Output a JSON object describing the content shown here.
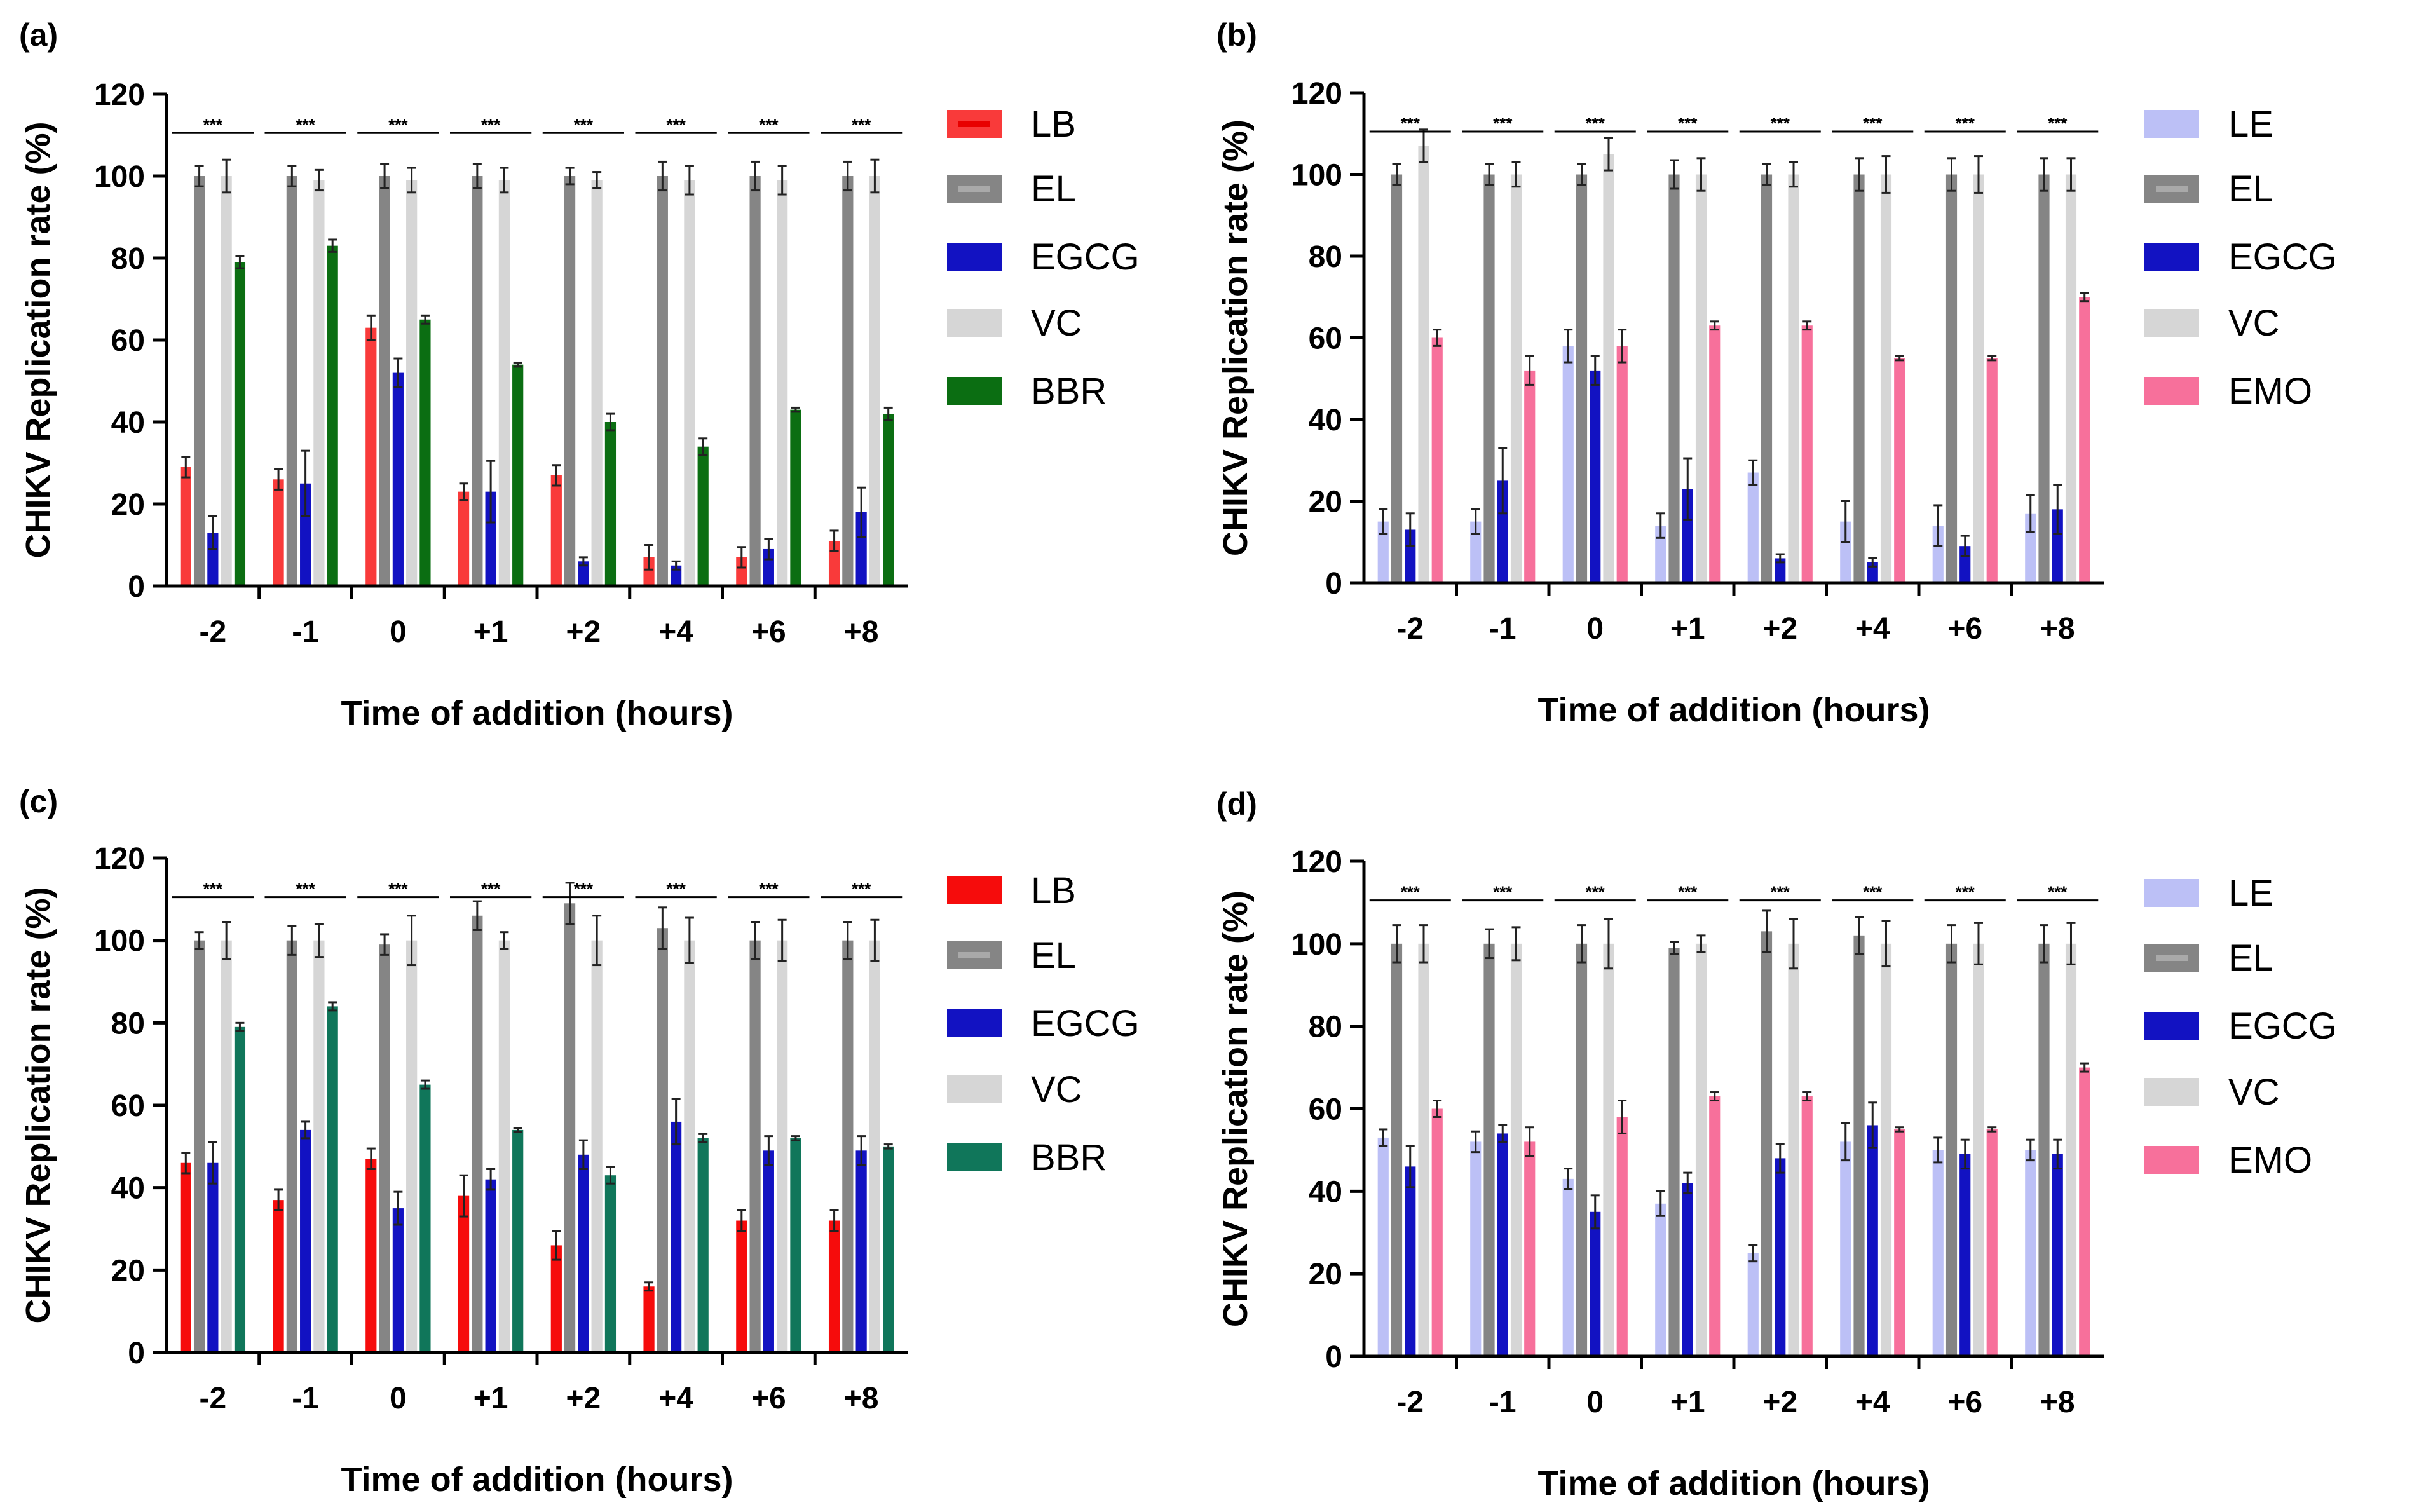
{
  "colors": {
    "LB": "#f93a3a",
    "LB_c": "#f60c0c",
    "LE": "#bcc0f6",
    "EL": "#858585",
    "EGCG": "#1212c2",
    "VC": "#d6d6d6",
    "BBR": "#0b6e12",
    "BBR_c": "#10765a",
    "EMO": "#f7709b",
    "axis": "#000000"
  },
  "chart_data": [
    {
      "panel": "(a)",
      "type": "bar",
      "title": "",
      "ylabel": "CHIKV Replication rate (%)",
      "xlabel": "Time of addition (hours)",
      "categories": [
        "-2",
        "-1",
        "0",
        "+1",
        "+2",
        "+4",
        "+6",
        "+8"
      ],
      "ylim": [
        0,
        120
      ],
      "yticks": [
        "0",
        "20",
        "40",
        "60",
        "80",
        "100",
        "120"
      ],
      "significance": "***",
      "legend": [
        "LB",
        "EL",
        "EGCG",
        "VC",
        "BBR"
      ],
      "series": [
        {
          "name": "LB",
          "color_key": "LB",
          "values": [
            29,
            26,
            63,
            23,
            27,
            7,
            7,
            11
          ],
          "err": [
            2.5,
            2.5,
            3,
            2,
            2.5,
            3,
            2.5,
            2.5
          ]
        },
        {
          "name": "EL",
          "color_key": "EL",
          "values": [
            100,
            100,
            100,
            100,
            100,
            100,
            100,
            100
          ],
          "err": [
            2.5,
            2.5,
            3,
            3,
            2,
            3.5,
            3.5,
            3.5
          ]
        },
        {
          "name": "EGCG",
          "color_key": "EGCG",
          "values": [
            13,
            25,
            52,
            23,
            6,
            5,
            9,
            18
          ],
          "err": [
            4,
            8,
            3.5,
            7.5,
            1,
            1,
            2.5,
            6
          ]
        },
        {
          "name": "VC",
          "color_key": "VC",
          "values": [
            100,
            99,
            99,
            99,
            99,
            99,
            99,
            100
          ],
          "err": [
            4,
            2.5,
            3,
            3,
            2,
            3.5,
            3.5,
            4
          ]
        },
        {
          "name": "BBR",
          "color_key": "BBR",
          "values": [
            79,
            83,
            65,
            54,
            40,
            34,
            43,
            42
          ],
          "err": [
            1.5,
            1.5,
            1,
            0.5,
            2,
            2,
            0.5,
            1.5
          ]
        }
      ]
    },
    {
      "panel": "(b)",
      "type": "bar",
      "title": "",
      "ylabel": "CHIKV Replication rate (%)",
      "xlabel": "Time of addition (hours)",
      "categories": [
        "-2",
        "-1",
        "0",
        "+1",
        "+2",
        "+4",
        "+6",
        "+8"
      ],
      "ylim": [
        0,
        120
      ],
      "yticks": [
        "0",
        "20",
        "40",
        "60",
        "80",
        "100",
        "120"
      ],
      "significance": "***",
      "legend": [
        "LE",
        "EL",
        "EGCG",
        "VC",
        "EMO"
      ],
      "series": [
        {
          "name": "LE",
          "color_key": "LE",
          "values": [
            15,
            15,
            58,
            14,
            27,
            15,
            14,
            17
          ],
          "err": [
            3,
            3,
            4,
            3,
            3,
            5,
            5,
            4.5
          ]
        },
        {
          "name": "EL",
          "color_key": "EL",
          "values": [
            100,
            100,
            100,
            100,
            100,
            100,
            100,
            100
          ],
          "err": [
            2.5,
            2.5,
            2.5,
            3.5,
            2.5,
            4,
            4,
            4
          ]
        },
        {
          "name": "EGCG",
          "color_key": "EGCG",
          "values": [
            13,
            25,
            52,
            23,
            6,
            5,
            9,
            18
          ],
          "err": [
            4,
            8,
            3.5,
            7.5,
            1,
            1,
            2.5,
            6
          ]
        },
        {
          "name": "VC",
          "color_key": "VC",
          "values": [
            107,
            100,
            105,
            100,
            100,
            100,
            100,
            100
          ],
          "err": [
            4,
            3,
            4,
            4,
            3,
            4.5,
            4.5,
            4
          ]
        },
        {
          "name": "EMO",
          "color_key": "EMO",
          "values": [
            60,
            52,
            58,
            63,
            63,
            55,
            55,
            70
          ],
          "err": [
            2,
            3.5,
            4,
            1,
            1,
            0.5,
            0.5,
            1
          ]
        }
      ]
    },
    {
      "panel": "(c)",
      "type": "bar",
      "title": "",
      "ylabel": "CHIKV Replication rate (%)",
      "xlabel": "Time of addition (hours)",
      "categories": [
        "-2",
        "-1",
        "0",
        "+1",
        "+2",
        "+4",
        "+6",
        "+8"
      ],
      "ylim": [
        0,
        120
      ],
      "yticks": [
        "0",
        "20",
        "40",
        "60",
        "80",
        "100",
        "120"
      ],
      "significance": "***",
      "legend": [
        "LB",
        "EL",
        "EGCG",
        "VC",
        "BBR"
      ],
      "series": [
        {
          "name": "LB",
          "color_key": "LB_c",
          "values": [
            46,
            37,
            47,
            38,
            26,
            16,
            32,
            32
          ],
          "err": [
            2.5,
            2.5,
            2.5,
            5,
            3.5,
            1,
            2.5,
            2.5
          ]
        },
        {
          "name": "EL",
          "color_key": "EL",
          "values": [
            100,
            100,
            99,
            106,
            109,
            103,
            100,
            100
          ],
          "err": [
            2,
            3.5,
            2.5,
            3.5,
            5,
            5,
            4.5,
            4.5
          ]
        },
        {
          "name": "EGCG",
          "color_key": "EGCG",
          "values": [
            46,
            54,
            35,
            42,
            48,
            56,
            49,
            49
          ],
          "err": [
            5,
            2,
            4,
            2.5,
            3.5,
            5.5,
            3.5,
            3.5
          ]
        },
        {
          "name": "VC",
          "color_key": "VC",
          "values": [
            100,
            100,
            100,
            100,
            100,
            100,
            100,
            100
          ],
          "err": [
            4.5,
            4,
            6,
            2,
            6,
            5.5,
            5,
            5
          ]
        },
        {
          "name": "BBR",
          "color_key": "BBR_c",
          "values": [
            79,
            84,
            65,
            54,
            43,
            52,
            52,
            50
          ],
          "err": [
            1,
            1,
            1,
            0.5,
            2,
            1,
            0.5,
            0.5
          ]
        }
      ]
    },
    {
      "panel": "(d)",
      "type": "bar",
      "title": "",
      "ylabel": "CHIKV Replication rate (%)",
      "xlabel": "Time of addition (hours)",
      "categories": [
        "-2",
        "-1",
        "0",
        "+1",
        "+2",
        "+4",
        "+6",
        "+8"
      ],
      "ylim": [
        0,
        120
      ],
      "yticks": [
        "0",
        "20",
        "40",
        "60",
        "80",
        "100",
        "120"
      ],
      "significance": "***",
      "legend": [
        "LE",
        "EL",
        "EGCG",
        "VC",
        "EMO"
      ],
      "series": [
        {
          "name": "LE",
          "color_key": "LE",
          "values": [
            53,
            52,
            43,
            37,
            25,
            52,
            50,
            50
          ],
          "err": [
            2,
            2.5,
            2.5,
            3,
            2,
            4.5,
            3,
            2.5
          ]
        },
        {
          "name": "EL",
          "color_key": "EL",
          "values": [
            100,
            100,
            100,
            99,
            103,
            102,
            100,
            100
          ],
          "err": [
            4.5,
            3.5,
            4.5,
            1.5,
            5,
            4.5,
            4.5,
            4.5
          ]
        },
        {
          "name": "EGCG",
          "color_key": "EGCG",
          "values": [
            46,
            54,
            35,
            42,
            48,
            56,
            49,
            49
          ],
          "err": [
            5,
            2,
            4,
            2.5,
            3.5,
            5.5,
            3.5,
            3.5
          ]
        },
        {
          "name": "VC",
          "color_key": "VC",
          "values": [
            100,
            100,
            100,
            100,
            100,
            100,
            100,
            100
          ],
          "err": [
            4.5,
            4,
            6,
            2,
            6,
            5.5,
            5,
            5
          ]
        },
        {
          "name": "EMO",
          "color_key": "EMO",
          "values": [
            60,
            52,
            58,
            63,
            63,
            55,
            55,
            70
          ],
          "err": [
            2,
            3.5,
            4,
            1,
            1,
            0.5,
            0.5,
            1
          ]
        }
      ]
    }
  ]
}
